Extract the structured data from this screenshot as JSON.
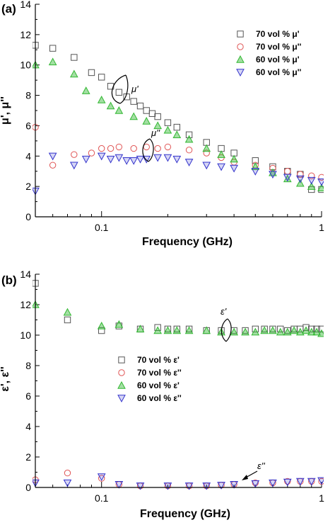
{
  "colors": {
    "sq": "#555555",
    "circ": "#e05555",
    "tri_up": "#33b833",
    "tri_down": "#3333cc"
  },
  "chart_data": [
    {
      "type": "scatter",
      "panel_label": "(a)",
      "xlabel": "Frequency (GHz)",
      "ylabel": "μ', μ''",
      "xscale": "log",
      "xlim": [
        0.05,
        1
      ],
      "ylim": [
        0,
        14
      ],
      "y_ticks": [
        0,
        2,
        4,
        6,
        8,
        10,
        12,
        14
      ],
      "x_ticks": [
        0.1,
        1
      ],
      "x_tick_labels": [
        "0.1",
        "1"
      ],
      "legend_position": "top-right",
      "annotations": [
        "μ'",
        "μ''"
      ],
      "series": [
        {
          "name": "70 vol % μ'",
          "marker": "square",
          "color_key": "sq",
          "x": [
            0.05,
            0.06,
            0.075,
            0.09,
            0.1,
            0.11,
            0.12,
            0.13,
            0.14,
            0.15,
            0.16,
            0.17,
            0.18,
            0.2,
            0.22,
            0.25,
            0.3,
            0.35,
            0.4,
            0.5,
            0.6,
            0.7,
            0.8,
            0.9,
            1.0
          ],
          "y": [
            11.3,
            11.1,
            10.5,
            9.5,
            9.2,
            8.6,
            8.2,
            7.9,
            7.6,
            7.3,
            7.0,
            6.8,
            6.6,
            6.2,
            5.9,
            5.4,
            4.9,
            4.5,
            4.2,
            3.7,
            3.3,
            3.0,
            2.8,
            1.8,
            1.8
          ]
        },
        {
          "name": "70 vol % μ''",
          "marker": "circle",
          "color_key": "circ",
          "x": [
            0.05,
            0.06,
            0.075,
            0.09,
            0.1,
            0.11,
            0.12,
            0.14,
            0.16,
            0.18,
            0.2,
            0.25,
            0.3,
            0.35,
            0.4,
            0.5,
            0.6,
            0.7,
            0.8,
            0.9,
            1.0
          ],
          "y": [
            5.9,
            3.4,
            4.1,
            4.2,
            4.5,
            4.5,
            4.6,
            4.5,
            4.6,
            4.5,
            4.6,
            4.4,
            4.2,
            3.9,
            3.6,
            3.4,
            3.2,
            3.0,
            2.8,
            2.7,
            2.6
          ]
        },
        {
          "name": "60 vol % μ'",
          "marker": "triangle-up",
          "color_key": "tri_up",
          "x": [
            0.05,
            0.06,
            0.075,
            0.085,
            0.1,
            0.11,
            0.12,
            0.14,
            0.16,
            0.18,
            0.2,
            0.22,
            0.25,
            0.3,
            0.35,
            0.4,
            0.5,
            0.6,
            0.7,
            0.8,
            0.9,
            1.0
          ],
          "y": [
            10.0,
            10.2,
            9.4,
            8.3,
            7.7,
            7.3,
            7.0,
            6.6,
            6.3,
            6.0,
            5.7,
            5.4,
            5.1,
            4.5,
            4.1,
            3.8,
            3.3,
            2.9,
            2.5,
            2.2,
            2.0,
            1.9
          ]
        },
        {
          "name": "60 vol % μ''",
          "marker": "triangle-down",
          "color_key": "tri_down",
          "x": [
            0.05,
            0.06,
            0.075,
            0.085,
            0.1,
            0.11,
            0.12,
            0.13,
            0.14,
            0.15,
            0.16,
            0.18,
            0.2,
            0.22,
            0.25,
            0.3,
            0.35,
            0.4,
            0.5,
            0.6,
            0.7,
            0.8,
            0.9,
            1.0
          ],
          "y": [
            1.7,
            4.0,
            3.4,
            3.8,
            4.0,
            3.8,
            3.9,
            3.7,
            3.7,
            3.8,
            3.8,
            3.9,
            3.9,
            3.8,
            3.6,
            3.4,
            3.3,
            3.2,
            3.0,
            2.8,
            2.6,
            2.5,
            2.4,
            2.3
          ]
        }
      ]
    },
    {
      "type": "scatter",
      "panel_label": "(b)",
      "xlabel": "Frequency (GHz)",
      "ylabel": "ε', ε''",
      "xscale": "log",
      "xlim": [
        0.05,
        1
      ],
      "ylim": [
        0,
        14
      ],
      "y_ticks": [
        0,
        2,
        4,
        6,
        8,
        10,
        12,
        14
      ],
      "x_ticks": [
        0.1,
        1
      ],
      "x_tick_labels": [
        "0.1",
        "1"
      ],
      "legend_position": "middle-left",
      "annotations": [
        "ε'",
        "ε''"
      ],
      "series": [
        {
          "name": "70 vol % ε'",
          "marker": "square",
          "color_key": "sq",
          "x": [
            0.05,
            0.07,
            0.1,
            0.12,
            0.15,
            0.18,
            0.2,
            0.22,
            0.25,
            0.3,
            0.35,
            0.4,
            0.45,
            0.5,
            0.55,
            0.6,
            0.65,
            0.7,
            0.75,
            0.8,
            0.85,
            0.9,
            0.95,
            1.0
          ],
          "y": [
            13.4,
            11.0,
            10.3,
            10.6,
            10.4,
            10.5,
            10.4,
            10.4,
            10.4,
            10.3,
            10.3,
            10.3,
            10.3,
            10.4,
            10.4,
            10.4,
            10.4,
            10.3,
            10.4,
            10.4,
            10.5,
            10.4,
            10.4,
            10.4
          ]
        },
        {
          "name": "70 vol % ε''",
          "marker": "circle",
          "color_key": "circ",
          "x": [
            0.05,
            0.07,
            0.1,
            0.12,
            0.15,
            0.2,
            0.25,
            0.3,
            0.35,
            0.4,
            0.5,
            0.6,
            0.7,
            0.8,
            0.9,
            1.0
          ],
          "y": [
            0.5,
            0.95,
            0.6,
            0.2,
            0.1,
            0.1,
            0.1,
            0.1,
            0.15,
            0.2,
            0.3,
            0.3,
            0.4,
            0.4,
            0.4,
            0.4
          ]
        },
        {
          "name": "60 vol % ε'",
          "marker": "triangle-up",
          "color_key": "tri_up",
          "x": [
            0.05,
            0.07,
            0.1,
            0.12,
            0.15,
            0.18,
            0.2,
            0.22,
            0.25,
            0.3,
            0.35,
            0.4,
            0.45,
            0.5,
            0.55,
            0.6,
            0.65,
            0.7,
            0.75,
            0.8,
            0.85,
            0.9,
            0.95,
            1.0
          ],
          "y": [
            12.0,
            11.5,
            10.6,
            10.7,
            10.4,
            10.3,
            10.3,
            10.3,
            10.3,
            10.3,
            10.2,
            10.2,
            10.2,
            10.2,
            10.3,
            10.3,
            10.2,
            10.2,
            10.3,
            10.2,
            10.3,
            10.2,
            10.2,
            10.1
          ]
        },
        {
          "name": "60 vol % ε''",
          "marker": "triangle-down",
          "color_key": "tri_down",
          "x": [
            0.05,
            0.07,
            0.1,
            0.12,
            0.15,
            0.2,
            0.25,
            0.3,
            0.35,
            0.4,
            0.5,
            0.6,
            0.7,
            0.8,
            0.9,
            1.0
          ],
          "y": [
            0.3,
            0.3,
            0.7,
            0.2,
            0.1,
            0.1,
            0.1,
            0.1,
            0.15,
            0.2,
            0.25,
            0.3,
            0.35,
            0.4,
            0.4,
            0.45
          ]
        }
      ]
    }
  ]
}
